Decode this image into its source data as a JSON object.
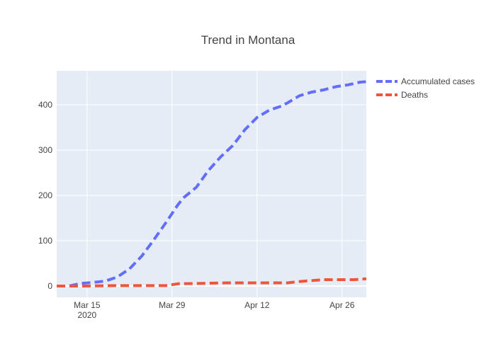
{
  "chart_data": {
    "type": "line",
    "title": "Trend in Montana",
    "xlabel": "",
    "ylabel": "",
    "x_start": "2020-03-10",
    "x_end": "2020-04-30",
    "x_ticks": [
      {
        "date": "2020-03-15",
        "label": "Mar 15",
        "sublabel": "2020"
      },
      {
        "date": "2020-03-29",
        "label": "Mar 29",
        "sublabel": ""
      },
      {
        "date": "2020-04-12",
        "label": "Apr 12",
        "sublabel": ""
      },
      {
        "date": "2020-04-26",
        "label": "Apr 26",
        "sublabel": ""
      }
    ],
    "ylim": [
      -25,
      475
    ],
    "y_ticks": [
      0,
      100,
      200,
      300,
      400
    ],
    "grid": true,
    "legend_position": "top-right",
    "series": [
      {
        "name": "Accumulated cases",
        "color": "#636efa",
        "points": [
          [
            "2020-03-10",
            0
          ],
          [
            "2020-03-12",
            0
          ],
          [
            "2020-03-14",
            6
          ],
          [
            "2020-03-16",
            8
          ],
          [
            "2020-03-18",
            11
          ],
          [
            "2020-03-20",
            20
          ],
          [
            "2020-03-22",
            38
          ],
          [
            "2020-03-24",
            66
          ],
          [
            "2020-03-26",
            102
          ],
          [
            "2020-03-28",
            140
          ],
          [
            "2020-03-30",
            180
          ],
          [
            "2020-03-31",
            196
          ],
          [
            "2020-04-02",
            218
          ],
          [
            "2020-04-04",
            255
          ],
          [
            "2020-04-06",
            285
          ],
          [
            "2020-04-08",
            310
          ],
          [
            "2020-04-10",
            345
          ],
          [
            "2020-04-12",
            372
          ],
          [
            "2020-04-14",
            388
          ],
          [
            "2020-04-16",
            397
          ],
          [
            "2020-04-17",
            404
          ],
          [
            "2020-04-19",
            420
          ],
          [
            "2020-04-21",
            428
          ],
          [
            "2020-04-23",
            433
          ],
          [
            "2020-04-25",
            440
          ],
          [
            "2020-04-27",
            444
          ],
          [
            "2020-04-29",
            450
          ],
          [
            "2020-04-30",
            451
          ]
        ]
      },
      {
        "name": "Deaths",
        "color": "#ef553b",
        "points": [
          [
            "2020-03-10",
            0
          ],
          [
            "2020-03-14",
            0
          ],
          [
            "2020-03-20",
            1
          ],
          [
            "2020-03-28",
            1
          ],
          [
            "2020-03-30",
            5
          ],
          [
            "2020-04-03",
            6
          ],
          [
            "2020-04-07",
            7
          ],
          [
            "2020-04-11",
            7
          ],
          [
            "2020-04-17",
            7
          ],
          [
            "2020-04-19",
            10
          ],
          [
            "2020-04-23",
            14
          ],
          [
            "2020-04-28",
            14
          ],
          [
            "2020-04-30",
            16
          ]
        ]
      }
    ]
  }
}
